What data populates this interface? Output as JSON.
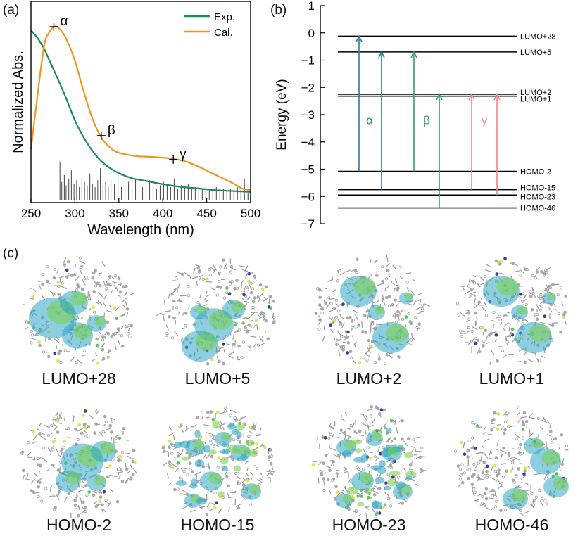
{
  "panels": {
    "a": "(a)",
    "b": "(b)",
    "c": "(c)"
  },
  "colors": {
    "exp": "#1a8a5e",
    "cal": "#f0961e",
    "stick": "#555555",
    "alpha": "#2a7d9e",
    "beta": "#2e9e6e",
    "gamma": "#e8878a"
  },
  "chart_data": [
    {
      "type": "line",
      "title": "",
      "xlabel": "Wavelength (nm)",
      "ylabel": "Normalized Abs.",
      "xlim": [
        250,
        500
      ],
      "ylim": [
        0,
        1
      ],
      "xticks": [
        250,
        300,
        350,
        400,
        450,
        500
      ],
      "legend": {
        "position": "top-right",
        "entries": [
          "Exp.",
          "Cal."
        ]
      },
      "series": [
        {
          "name": "Exp.",
          "x": [
            250,
            258,
            265,
            272,
            280,
            290,
            300,
            310,
            320,
            330,
            340,
            350,
            365,
            380,
            400,
            420,
            440,
            460,
            480,
            500
          ],
          "y": [
            0.98,
            0.93,
            0.87,
            0.79,
            0.7,
            0.58,
            0.45,
            0.35,
            0.27,
            0.21,
            0.17,
            0.14,
            0.11,
            0.095,
            0.075,
            0.06,
            0.05,
            0.04,
            0.035,
            0.03
          ]
        },
        {
          "name": "Cal.",
          "x": [
            250,
            258,
            265,
            270,
            276,
            282,
            290,
            300,
            310,
            320,
            330,
            340,
            350,
            370,
            390,
            410,
            425,
            440,
            460,
            480,
            490,
            500
          ],
          "y": [
            0.28,
            0.62,
            0.89,
            0.96,
            1.0,
            0.99,
            0.93,
            0.8,
            0.62,
            0.46,
            0.35,
            0.29,
            0.26,
            0.24,
            0.235,
            0.225,
            0.21,
            0.18,
            0.13,
            0.08,
            0.05,
            0.04
          ]
        }
      ],
      "sticks": {
        "x": [
          283,
          285,
          288,
          290,
          293,
          296,
          299,
          302,
          305,
          308,
          311,
          314,
          317,
          320,
          323,
          326,
          329,
          332,
          335,
          338,
          341,
          345,
          349,
          353,
          357,
          361,
          365,
          369,
          373,
          377,
          381,
          385,
          389,
          393,
          397,
          401,
          405,
          409,
          413,
          417,
          421,
          425,
          429,
          433,
          437,
          441,
          445,
          449,
          453,
          457,
          461,
          465,
          469,
          473,
          477,
          481,
          485,
          489,
          493,
          497
        ],
        "y": [
          0.2,
          0.08,
          0.12,
          0.06,
          0.1,
          0.15,
          0.07,
          0.09,
          0.05,
          0.11,
          0.08,
          0.06,
          0.13,
          0.07,
          0.05,
          0.09,
          0.16,
          0.06,
          0.08,
          0.05,
          0.1,
          0.07,
          0.12,
          0.05,
          0.06,
          0.08,
          0.04,
          0.1,
          0.06,
          0.05,
          0.07,
          0.09,
          0.05,
          0.04,
          0.06,
          0.08,
          0.07,
          0.05,
          0.1,
          0.04,
          0.06,
          0.05,
          0.07,
          0.04,
          0.05,
          0.06,
          0.04,
          0.05,
          0.03,
          0.04,
          0.05,
          0.03,
          0.04,
          0.03,
          0.04,
          0.03,
          0.05,
          0.03,
          0.1,
          0.03
        ]
      },
      "annotations": [
        {
          "label": "α",
          "x": 276,
          "y": 1.0
        },
        {
          "label": "β",
          "x": 330,
          "y": 0.36
        },
        {
          "label": "γ",
          "x": 412,
          "y": 0.22
        }
      ]
    },
    {
      "type": "energy-level",
      "ylabel": "Energy (eV)",
      "ylim": [
        -7,
        1
      ],
      "yticks": [
        1,
        0,
        -1,
        -2,
        -3,
        -4,
        -5,
        -6,
        -7
      ],
      "levels": [
        {
          "name": "LUMO+28",
          "energy": -0.12
        },
        {
          "name": "LUMO+5",
          "energy": -0.7
        },
        {
          "name": "LUMO+2",
          "energy": -2.25
        },
        {
          "name": "LUMO+1",
          "energy": -2.32
        },
        {
          "name": "HOMO-2",
          "energy": -5.08
        },
        {
          "name": "HOMO-15",
          "energy": -5.75
        },
        {
          "name": "HOMO-23",
          "energy": -5.95
        },
        {
          "name": "HOMO-46",
          "energy": -6.42
        }
      ],
      "transitions": [
        {
          "group": "alpha",
          "label": "α",
          "from": -5.08,
          "to": -0.12
        },
        {
          "group": "alpha",
          "label": "",
          "from": -5.75,
          "to": -0.7
        },
        {
          "group": "beta",
          "label": "β",
          "from": -5.08,
          "to": -0.7
        },
        {
          "group": "beta",
          "label": "",
          "from": -6.42,
          "to": -2.25
        },
        {
          "group": "gamma",
          "label": "γ",
          "from": -5.75,
          "to": -2.25
        },
        {
          "group": "gamma",
          "label": "",
          "from": -5.95,
          "to": -2.25
        }
      ]
    }
  ],
  "orbitals": [
    {
      "name": "LUMO+28",
      "lobe": "left"
    },
    {
      "name": "LUMO+5",
      "lobe": "center-left"
    },
    {
      "name": "LUMO+2",
      "lobe": "split"
    },
    {
      "name": "LUMO+1",
      "lobe": "split"
    },
    {
      "name": "HOMO-2",
      "lobe": "center"
    },
    {
      "name": "HOMO-15",
      "lobe": "spread"
    },
    {
      "name": "HOMO-23",
      "lobe": "spread"
    },
    {
      "name": "HOMO-46",
      "lobe": "right"
    }
  ]
}
